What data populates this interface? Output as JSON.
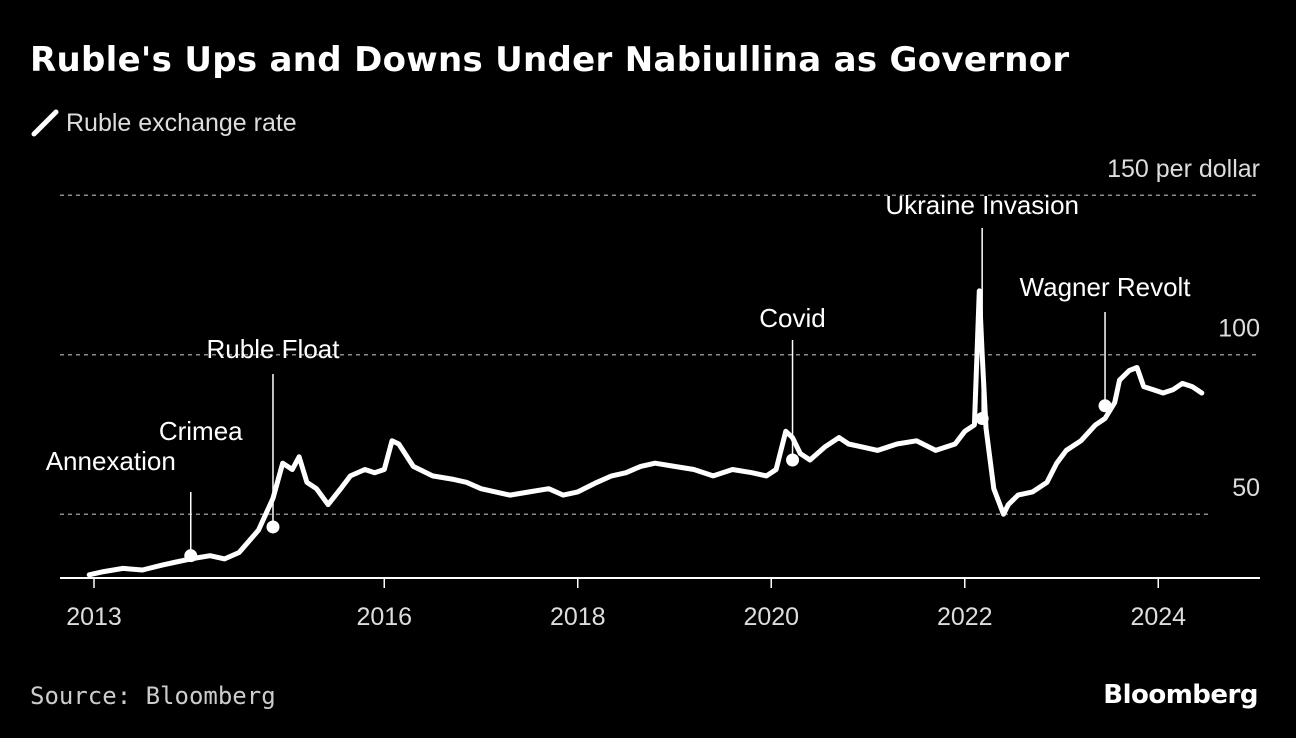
{
  "title": "Ruble's Ups and Downs Under Nabiullina as Governor",
  "source": "Source: Bloomberg",
  "brand": "Bloomberg",
  "colors": {
    "background": "#000000",
    "line": "#ffffff",
    "grid": "#8a8a8a",
    "text": "#dddddd"
  },
  "chart_data": {
    "type": "line",
    "title": "Ruble's Ups and Downs Under Nabiullina as Governor",
    "xlabel": "",
    "ylabel": "",
    "ylim": [
      30,
      150
    ],
    "xlim": [
      2012.6,
      2025.3
    ],
    "grid": true,
    "legend_position": "top-left",
    "y_ticks": [
      {
        "value": 150,
        "label": "150 per dollar"
      },
      {
        "value": 100,
        "label": "100"
      },
      {
        "value": 50,
        "label": "50"
      }
    ],
    "x_ticks": [
      {
        "value": 2013,
        "label": "2013"
      },
      {
        "value": 2016,
        "label": "2016"
      },
      {
        "value": 2018,
        "label": "2018"
      },
      {
        "value": 2020,
        "label": "2020"
      },
      {
        "value": 2022,
        "label": "2022"
      },
      {
        "value": 2024,
        "label": "2024"
      }
    ],
    "series": [
      {
        "name": "Ruble exchange rate",
        "x": [
          2012.95,
          2013.1,
          2013.3,
          2013.5,
          2013.7,
          2013.85,
          2014.0,
          2014.2,
          2014.35,
          2014.5,
          2014.7,
          2014.85,
          2014.95,
          2015.05,
          2015.12,
          2015.2,
          2015.3,
          2015.42,
          2015.55,
          2015.65,
          2015.8,
          2015.9,
          2016.0,
          2016.08,
          2016.15,
          2016.3,
          2016.5,
          2016.7,
          2016.85,
          2017.0,
          2017.15,
          2017.3,
          2017.5,
          2017.7,
          2017.85,
          2018.0,
          2018.2,
          2018.35,
          2018.5,
          2018.65,
          2018.8,
          2019.0,
          2019.2,
          2019.4,
          2019.6,
          2019.8,
          2019.95,
          2020.05,
          2020.15,
          2020.22,
          2020.3,
          2020.4,
          2020.55,
          2020.7,
          2020.8,
          2020.95,
          2021.1,
          2021.3,
          2021.5,
          2021.7,
          2021.9,
          2022.0,
          2022.1,
          2022.15,
          2022.18,
          2022.22,
          2022.3,
          2022.4,
          2022.45,
          2022.55,
          2022.7,
          2022.85,
          2022.95,
          2023.05,
          2023.2,
          2023.35,
          2023.45,
          2023.55,
          2023.6,
          2023.7,
          2023.78,
          2023.85,
          2023.95,
          2024.05,
          2024.15,
          2024.25,
          2024.35,
          2024.45
        ],
        "values": [
          31,
          32,
          33,
          32.5,
          34,
          35,
          36,
          37,
          36,
          38,
          45,
          55,
          66,
          64,
          68,
          60,
          58,
          53,
          58,
          62,
          64,
          63,
          64,
          73,
          72,
          65,
          62,
          61,
          60,
          58,
          57,
          56,
          57,
          58,
          56,
          57,
          60,
          62,
          63,
          65,
          66,
          65,
          64,
          62,
          64,
          63,
          62,
          64,
          76,
          74,
          69,
          67,
          71,
          74,
          72,
          71,
          70,
          72,
          73,
          70,
          72,
          76,
          78,
          120,
          100,
          77,
          58,
          50,
          53,
          56,
          57,
          60,
          66,
          70,
          73,
          78,
          80,
          85,
          92,
          95,
          96,
          90,
          89,
          88,
          89,
          91,
          90,
          88
        ],
        "annotations": [
          {
            "label": "Crimea Annexation",
            "x": 2014.0,
            "y": 37,
            "label_lines": [
              "Crimea",
              "Annexation"
            ]
          },
          {
            "label": "Ruble Float",
            "x": 2014.85,
            "y": 46
          },
          {
            "label": "Covid",
            "x": 2020.22,
            "y": 67
          },
          {
            "label": "Ukraine Invasion",
            "x": 2022.18,
            "y": 80
          },
          {
            "label": "Wagner Revolt",
            "x": 2023.45,
            "y": 84
          }
        ]
      }
    ]
  }
}
